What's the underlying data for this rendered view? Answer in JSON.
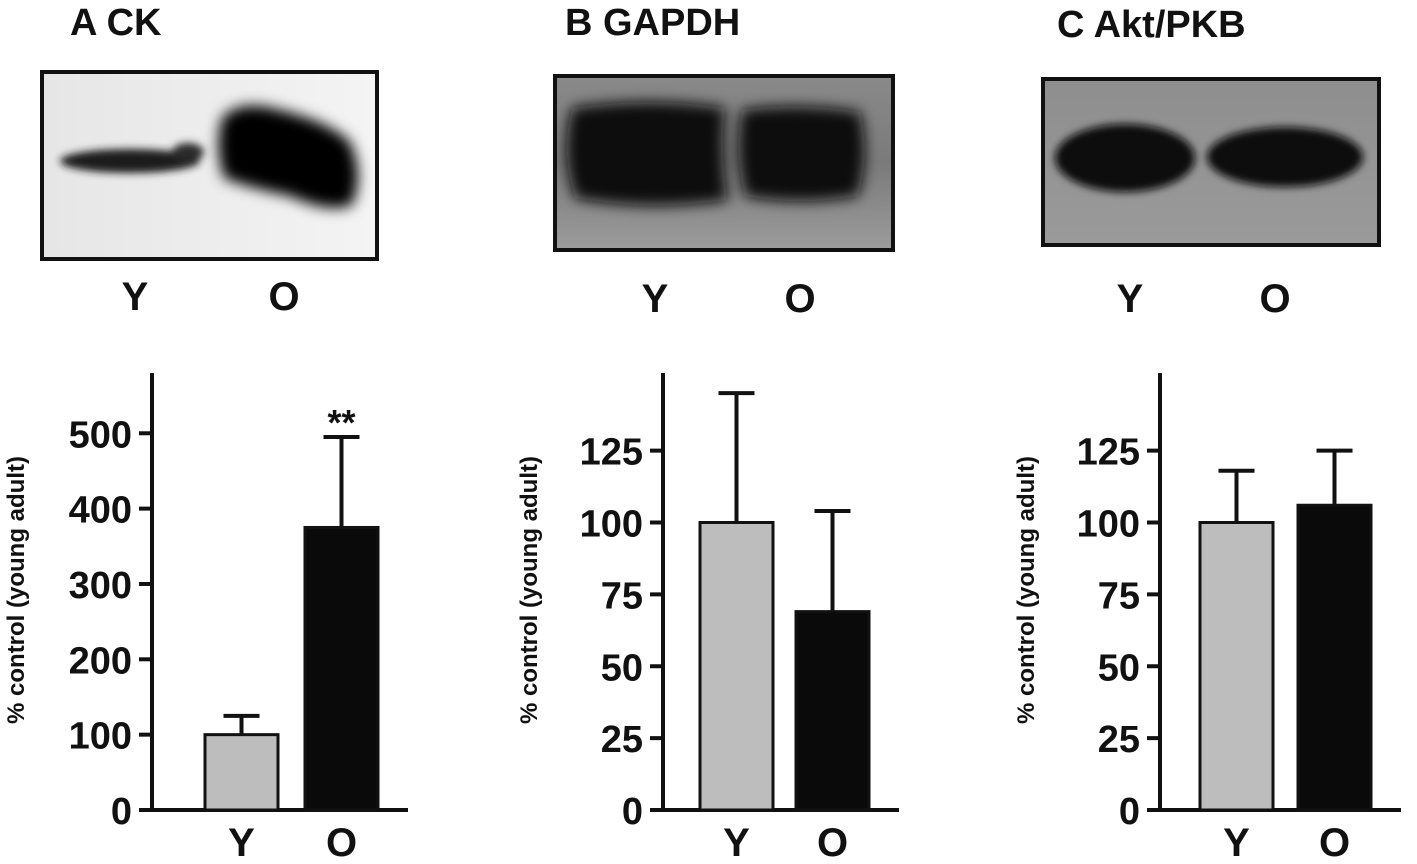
{
  "chart_data": [
    {
      "type": "bar",
      "title": "A  CK",
      "blot_lane_labels": [
        "Y",
        "O"
      ],
      "categories": [
        "Y",
        "O"
      ],
      "values": [
        100,
        375
      ],
      "errors": [
        25,
        120
      ],
      "bar_colors": [
        "#bdbdbd",
        "#0a0a0a"
      ],
      "significance": [
        "",
        "**"
      ],
      "ylabel": "% control (young adult)",
      "ylim": [
        0,
        580
      ],
      "yticks": [
        0,
        100,
        200,
        300,
        400,
        500
      ],
      "grid": false
    },
    {
      "type": "bar",
      "title": "B  GAPDH",
      "blot_lane_labels": [
        "Y",
        "O"
      ],
      "categories": [
        "Y",
        "O"
      ],
      "values": [
        100,
        69
      ],
      "errors": [
        45,
        35
      ],
      "bar_colors": [
        "#bdbdbd",
        "#0a0a0a"
      ],
      "significance": [
        "",
        ""
      ],
      "ylabel": "% control (young adult)",
      "ylim": [
        0,
        152
      ],
      "yticks": [
        0,
        25,
        50,
        75,
        100,
        125
      ],
      "grid": false
    },
    {
      "type": "bar",
      "title": "C  Akt/PKB",
      "blot_lane_labels": [
        "Y",
        "O"
      ],
      "categories": [
        "Y",
        "O"
      ],
      "values": [
        100,
        106
      ],
      "errors": [
        18,
        19
      ],
      "bar_colors": [
        "#bdbdbd",
        "#0a0a0a"
      ],
      "significance": [
        "",
        ""
      ],
      "ylabel": "% control (young adult)",
      "ylim": [
        0,
        152
      ],
      "yticks": [
        0,
        25,
        50,
        75,
        100,
        125
      ],
      "grid": false
    }
  ]
}
